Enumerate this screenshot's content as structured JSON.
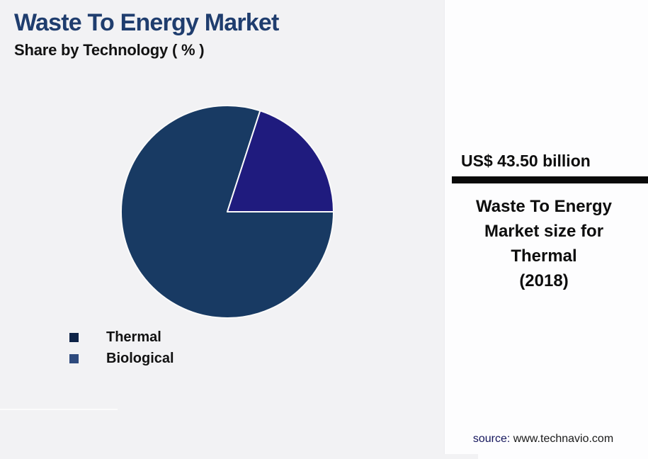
{
  "header": {
    "title": "Waste To Energy Market",
    "subtitle": "Share by Technology ( % )"
  },
  "chart_data": {
    "type": "pie",
    "title": "Waste To Energy Market",
    "subtitle": "Share by Technology ( % )",
    "categories": [
      "Thermal",
      "Biological"
    ],
    "values": [
      80,
      20
    ],
    "unit": "%",
    "slice_colors": [
      "#183a63",
      "#1f1b7e"
    ],
    "start_angle_deg": 90,
    "direction": "clockwise",
    "legend_position": "bottom-left",
    "slice_border_color": "#fafafa"
  },
  "legend": {
    "items": [
      {
        "label": "Thermal",
        "color": "#0e2347"
      },
      {
        "label": "Biological",
        "color": "#2e4a7d"
      }
    ]
  },
  "side_panel": {
    "value": "US$ 43.50 billion",
    "description_lines": [
      "Waste To Energy",
      "Market size for",
      "Thermal",
      "(2018)"
    ],
    "source_label": "source:",
    "source_url": "www.technavio.com"
  },
  "colors": {
    "page_background": "#f2f2f4",
    "panel_background": "#fdfdfe",
    "title": "#1f3d6e",
    "divider_bar": "#0a0a0a",
    "source_label": "#14155c"
  }
}
